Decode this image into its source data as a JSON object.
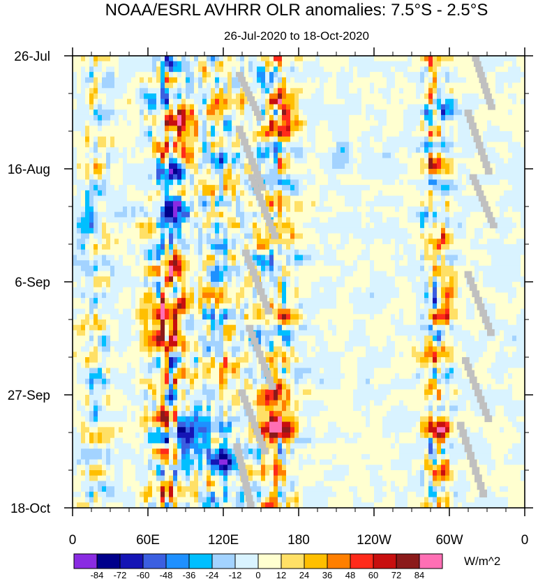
{
  "chart_data": {
    "type": "heatmap",
    "title": "NOAA/ESRL AVHRR OLR anomalies: 7.5°S - 2.5°S",
    "subtitle": "26-Jul-2020 to 18-Oct-2020",
    "xlabel": "",
    "ylabel": "",
    "x_ticks": [
      "0",
      "60E",
      "120E",
      "180",
      "120W",
      "60W",
      "0"
    ],
    "x_tick_values": [
      0,
      60,
      120,
      180,
      240,
      300,
      360
    ],
    "xlim": [
      0,
      360
    ],
    "y_ticks": [
      "26-Jul",
      "16-Aug",
      "6-Sep",
      "27-Sep",
      "18-Oct"
    ],
    "y_tick_days": [
      0,
      21,
      42,
      63,
      84
    ],
    "ylim_days": [
      0,
      84
    ],
    "colorbar": {
      "units": "W/m^2",
      "levels": [
        "-84",
        "-72",
        "-60",
        "-48",
        "-36",
        "-24",
        "-12",
        "0",
        "12",
        "24",
        "36",
        "48",
        "60",
        "72",
        "84"
      ],
      "colors": [
        "#8a2be2",
        "#00008b",
        "#1515b5",
        "#3b5fe0",
        "#1e90ff",
        "#00bfff",
        "#a3d3ff",
        "#d9f3ff",
        "#ffffd0",
        "#ffe066",
        "#ffbf00",
        "#ff7f00",
        "#ff2a1a",
        "#c80f0f",
        "#8b1a1a",
        "#ff6fb4"
      ]
    },
    "missing_color": "#c0c0c0",
    "features": [
      {
        "kind": "band",
        "lon": 20,
        "width": 14,
        "amp": 22
      },
      {
        "kind": "band",
        "lon": 78,
        "width": 20,
        "amp": 48
      },
      {
        "kind": "band",
        "lon": 118,
        "width": 16,
        "amp": 36
      },
      {
        "kind": "band",
        "lon": 160,
        "width": 18,
        "amp": 44
      },
      {
        "kind": "band",
        "lon": 290,
        "width": 12,
        "amp": 46
      },
      {
        "kind": "blob",
        "lon": 88,
        "day": 14,
        "r": 10,
        "v": 62
      },
      {
        "kind": "blob",
        "lon": 82,
        "day": 40,
        "r": 10,
        "v": 62
      },
      {
        "kind": "blob",
        "lon": 72,
        "day": 52,
        "r": 14,
        "v": 52
      },
      {
        "kind": "blob",
        "lon": 80,
        "day": 30,
        "r": 10,
        "v": -72
      },
      {
        "kind": "blob",
        "lon": 120,
        "day": 76,
        "r": 10,
        "v": -75
      },
      {
        "kind": "blob",
        "lon": 95,
        "day": 70,
        "r": 12,
        "v": -55
      },
      {
        "kind": "blob",
        "lon": 160,
        "day": 70,
        "r": 12,
        "v": 55
      },
      {
        "kind": "blob",
        "lon": 170,
        "day": 10,
        "r": 12,
        "v": 48
      },
      {
        "kind": "blob",
        "lon": 294,
        "day": 78,
        "r": 6,
        "v": 72
      },
      {
        "kind": "blob",
        "lon": 298,
        "day": 45,
        "r": 6,
        "v": 64
      },
      {
        "kind": "blob",
        "lon": 10,
        "day": 32,
        "r": 8,
        "v": -40
      },
      {
        "kind": "blob",
        "lon": 215,
        "day": 18,
        "r": 6,
        "v": -30
      }
    ],
    "missing_streaks": [
      {
        "lon_start": 130,
        "day_start": 3,
        "lon_end": 148,
        "day_end": 12
      },
      {
        "lon_start": 130,
        "day_start": 13,
        "lon_end": 150,
        "day_end": 25
      },
      {
        "lon_start": 140,
        "day_start": 22,
        "lon_end": 160,
        "day_end": 34
      },
      {
        "lon_start": 135,
        "day_start": 36,
        "lon_end": 155,
        "day_end": 48
      },
      {
        "lon_start": 138,
        "day_start": 50,
        "lon_end": 158,
        "day_end": 62
      },
      {
        "lon_start": 132,
        "day_start": 62,
        "lon_end": 152,
        "day_end": 74
      },
      {
        "lon_start": 128,
        "day_start": 72,
        "lon_end": 140,
        "day_end": 84
      },
      {
        "lon_start": 318,
        "day_start": 0,
        "lon_end": 332,
        "day_end": 10
      },
      {
        "lon_start": 312,
        "day_start": 10,
        "lon_end": 330,
        "day_end": 22
      },
      {
        "lon_start": 316,
        "day_start": 22,
        "lon_end": 334,
        "day_end": 32
      },
      {
        "lon_start": 312,
        "day_start": 40,
        "lon_end": 332,
        "day_end": 52
      },
      {
        "lon_start": 310,
        "day_start": 56,
        "lon_end": 330,
        "day_end": 68
      },
      {
        "lon_start": 306,
        "day_start": 68,
        "lon_end": 326,
        "day_end": 82
      }
    ]
  }
}
